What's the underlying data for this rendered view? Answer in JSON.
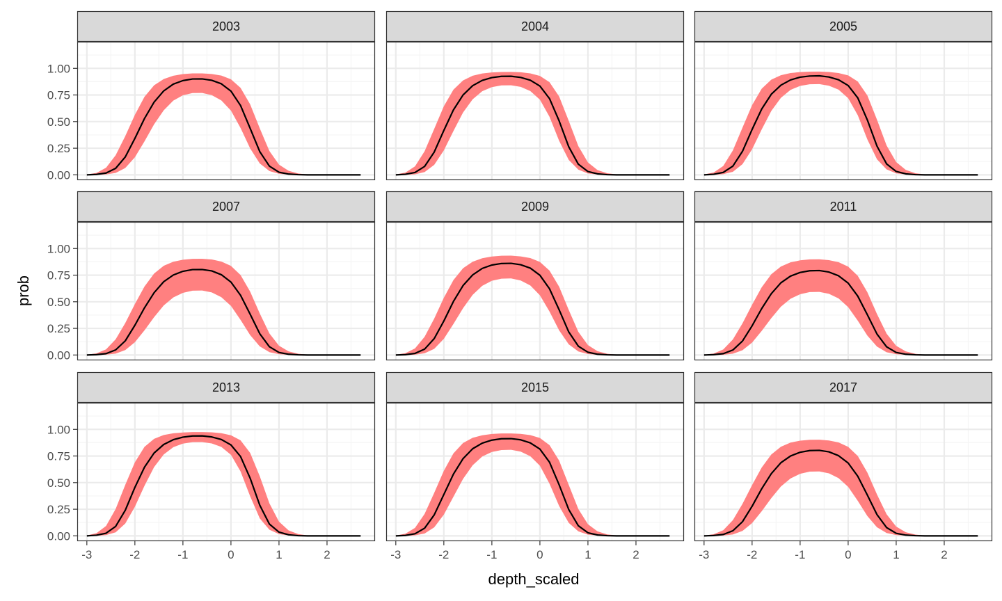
{
  "colors": {
    "ribbon": "#ff8080",
    "line": "#000000",
    "strip_fill": "#d9d9d9",
    "panel_border": "#333333",
    "grid_major": "#ebebeb",
    "grid_minor": "#f5f5f5",
    "tick_text": "#4d4d4d"
  },
  "chart_data": {
    "type": "line",
    "layout": "facet-grid 3x3",
    "xlabel": "depth_scaled",
    "ylabel": "prob",
    "xlim": [
      -3.2,
      3.0
    ],
    "ylim": [
      -0.05,
      1.25
    ],
    "x_ticks": [
      -3,
      -2,
      -1,
      0,
      1,
      2
    ],
    "x_tick_labels": [
      "-3",
      "-2",
      "-1",
      "0",
      "1",
      "2"
    ],
    "y_ticks": [
      0,
      0.25,
      0.5,
      0.75,
      1.0
    ],
    "y_tick_labels": [
      "0.00",
      "0.25",
      "0.50",
      "0.75",
      "1.00"
    ],
    "grid": true,
    "x": [
      -3.0,
      -2.8,
      -2.6,
      -2.4,
      -2.2,
      -2.0,
      -1.8,
      -1.6,
      -1.4,
      -1.2,
      -1.0,
      -0.8,
      -0.6,
      -0.4,
      -0.2,
      0.0,
      0.2,
      0.4,
      0.6,
      0.8,
      1.0,
      1.2,
      1.4,
      1.6,
      1.8,
      2.0,
      2.2,
      2.4,
      2.7
    ],
    "panels": [
      {
        "strip": "2003",
        "y": [
          0.0,
          0.004,
          0.017,
          0.061,
          0.168,
          0.342,
          0.529,
          0.683,
          0.788,
          0.852,
          0.885,
          0.9,
          0.901,
          0.888,
          0.855,
          0.786,
          0.651,
          0.436,
          0.218,
          0.082,
          0.025,
          0.007,
          0.002,
          0.0,
          0.0,
          0.0,
          0.0,
          0.0,
          0.0
        ],
        "lower": [
          0.0,
          0.0,
          0.004,
          0.018,
          0.064,
          0.165,
          0.314,
          0.474,
          0.606,
          0.697,
          0.747,
          0.768,
          0.769,
          0.749,
          0.699,
          0.603,
          0.44,
          0.248,
          0.107,
          0.036,
          0.01,
          0.002,
          0.0,
          0.0,
          0.0,
          0.0,
          0.0,
          0.0,
          0.0
        ],
        "upper": [
          0.003,
          0.018,
          0.067,
          0.184,
          0.364,
          0.563,
          0.733,
          0.841,
          0.9,
          0.931,
          0.946,
          0.953,
          0.953,
          0.947,
          0.932,
          0.897,
          0.817,
          0.662,
          0.437,
          0.224,
          0.096,
          0.038,
          0.013,
          0.003,
          0.0,
          0.0,
          0.0,
          0.0,
          0.0
        ]
      },
      {
        "strip": "2004",
        "y": [
          0.0,
          0.005,
          0.022,
          0.079,
          0.214,
          0.417,
          0.61,
          0.75,
          0.837,
          0.887,
          0.913,
          0.925,
          0.926,
          0.915,
          0.889,
          0.834,
          0.716,
          0.507,
          0.264,
          0.1,
          0.031,
          0.009,
          0.002,
          0.0,
          0.0,
          0.0,
          0.0,
          0.0,
          0.0
        ],
        "lower": [
          0.0,
          0.0,
          0.005,
          0.026,
          0.094,
          0.229,
          0.411,
          0.585,
          0.709,
          0.785,
          0.824,
          0.84,
          0.841,
          0.826,
          0.787,
          0.706,
          0.545,
          0.32,
          0.14,
          0.049,
          0.013,
          0.003,
          0.0,
          0.0,
          0.0,
          0.0,
          0.0,
          0.0,
          0.0
        ],
        "upper": [
          0.004,
          0.021,
          0.08,
          0.222,
          0.432,
          0.644,
          0.8,
          0.887,
          0.931,
          0.952,
          0.962,
          0.966,
          0.967,
          0.963,
          0.953,
          0.929,
          0.87,
          0.736,
          0.508,
          0.27,
          0.117,
          0.045,
          0.015,
          0.004,
          0.0,
          0.0,
          0.0,
          0.0,
          0.0
        ]
      },
      {
        "strip": "2005",
        "y": [
          0.0,
          0.005,
          0.023,
          0.082,
          0.221,
          0.426,
          0.618,
          0.757,
          0.842,
          0.891,
          0.917,
          0.928,
          0.93,
          0.919,
          0.893,
          0.839,
          0.723,
          0.515,
          0.27,
          0.103,
          0.032,
          0.009,
          0.002,
          0.0,
          0.0,
          0.0,
          0.0,
          0.0,
          0.0
        ],
        "lower": [
          0.0,
          0.0,
          0.006,
          0.028,
          0.1,
          0.24,
          0.426,
          0.6,
          0.723,
          0.798,
          0.835,
          0.851,
          0.852,
          0.837,
          0.8,
          0.72,
          0.56,
          0.332,
          0.146,
          0.051,
          0.014,
          0.003,
          0.0,
          0.0,
          0.0,
          0.0,
          0.0,
          0.0,
          0.0
        ],
        "upper": [
          0.004,
          0.022,
          0.083,
          0.229,
          0.443,
          0.655,
          0.809,
          0.894,
          0.936,
          0.956,
          0.965,
          0.969,
          0.97,
          0.966,
          0.956,
          0.934,
          0.877,
          0.745,
          0.518,
          0.276,
          0.12,
          0.046,
          0.015,
          0.004,
          0.0,
          0.0,
          0.0,
          0.0,
          0.0
        ]
      },
      {
        "strip": "2007",
        "y": [
          0.0,
          0.003,
          0.013,
          0.048,
          0.133,
          0.279,
          0.443,
          0.585,
          0.688,
          0.751,
          0.786,
          0.802,
          0.803,
          0.79,
          0.754,
          0.685,
          0.561,
          0.383,
          0.2,
          0.078,
          0.024,
          0.007,
          0.002,
          0.0,
          0.0,
          0.0,
          0.0,
          0.0,
          0.0
        ],
        "lower": [
          0.0,
          0.0,
          0.003,
          0.013,
          0.046,
          0.12,
          0.232,
          0.355,
          0.465,
          0.54,
          0.584,
          0.604,
          0.606,
          0.588,
          0.543,
          0.461,
          0.33,
          0.187,
          0.081,
          0.027,
          0.007,
          0.002,
          0.0,
          0.0,
          0.0,
          0.0,
          0.0,
          0.0,
          0.0
        ],
        "upper": [
          0.003,
          0.015,
          0.053,
          0.148,
          0.3,
          0.478,
          0.643,
          0.765,
          0.838,
          0.876,
          0.895,
          0.903,
          0.904,
          0.897,
          0.878,
          0.837,
          0.751,
          0.595,
          0.39,
          0.203,
          0.087,
          0.034,
          0.012,
          0.003,
          0.0,
          0.0,
          0.0,
          0.0,
          0.0
        ]
      },
      {
        "strip": "2009",
        "y": [
          0.0,
          0.003,
          0.015,
          0.055,
          0.154,
          0.319,
          0.503,
          0.652,
          0.752,
          0.813,
          0.845,
          0.859,
          0.861,
          0.848,
          0.816,
          0.749,
          0.622,
          0.425,
          0.217,
          0.083,
          0.026,
          0.007,
          0.002,
          0.0,
          0.0,
          0.0,
          0.0,
          0.0,
          0.0
        ],
        "lower": [
          0.0,
          0.0,
          0.003,
          0.016,
          0.058,
          0.152,
          0.291,
          0.439,
          0.565,
          0.65,
          0.697,
          0.717,
          0.719,
          0.7,
          0.653,
          0.561,
          0.408,
          0.232,
          0.1,
          0.033,
          0.009,
          0.002,
          0.0,
          0.0,
          0.0,
          0.0,
          0.0,
          0.0,
          0.0
        ],
        "upper": [
          0.003,
          0.017,
          0.062,
          0.171,
          0.342,
          0.537,
          0.704,
          0.815,
          0.876,
          0.909,
          0.925,
          0.932,
          0.933,
          0.926,
          0.91,
          0.874,
          0.793,
          0.642,
          0.424,
          0.218,
          0.093,
          0.036,
          0.012,
          0.003,
          0.0,
          0.0,
          0.0,
          0.0,
          0.0
        ]
      },
      {
        "strip": "2011",
        "y": [
          0.0,
          0.003,
          0.013,
          0.047,
          0.131,
          0.274,
          0.436,
          0.576,
          0.678,
          0.741,
          0.775,
          0.791,
          0.793,
          0.779,
          0.744,
          0.675,
          0.553,
          0.378,
          0.197,
          0.077,
          0.024,
          0.007,
          0.002,
          0.0,
          0.0,
          0.0,
          0.0,
          0.0,
          0.0
        ],
        "lower": [
          0.0,
          0.0,
          0.002,
          0.012,
          0.045,
          0.117,
          0.226,
          0.346,
          0.454,
          0.528,
          0.571,
          0.591,
          0.593,
          0.575,
          0.531,
          0.45,
          0.322,
          0.182,
          0.079,
          0.026,
          0.007,
          0.002,
          0.0,
          0.0,
          0.0,
          0.0,
          0.0,
          0.0,
          0.0
        ],
        "upper": [
          0.003,
          0.014,
          0.052,
          0.146,
          0.297,
          0.472,
          0.636,
          0.758,
          0.831,
          0.87,
          0.889,
          0.898,
          0.899,
          0.891,
          0.872,
          0.83,
          0.744,
          0.589,
          0.385,
          0.201,
          0.086,
          0.034,
          0.011,
          0.003,
          0.0,
          0.0,
          0.0,
          0.0,
          0.0
        ]
      },
      {
        "strip": "2013",
        "y": [
          0.0,
          0.006,
          0.025,
          0.089,
          0.24,
          0.455,
          0.645,
          0.778,
          0.858,
          0.903,
          0.927,
          0.938,
          0.939,
          0.929,
          0.905,
          0.854,
          0.745,
          0.541,
          0.288,
          0.111,
          0.035,
          0.01,
          0.002,
          0.0,
          0.0,
          0.0,
          0.0,
          0.0,
          0.0
        ],
        "lower": [
          0.0,
          0.001,
          0.007,
          0.033,
          0.116,
          0.273,
          0.47,
          0.646,
          0.764,
          0.833,
          0.866,
          0.88,
          0.881,
          0.868,
          0.835,
          0.761,
          0.605,
          0.371,
          0.164,
          0.058,
          0.016,
          0.004,
          0.0,
          0.0,
          0.0,
          0.0,
          0.0,
          0.0,
          0.0
        ],
        "upper": [
          0.004,
          0.025,
          0.093,
          0.253,
          0.479,
          0.691,
          0.836,
          0.911,
          0.947,
          0.963,
          0.971,
          0.975,
          0.975,
          0.972,
          0.964,
          0.945,
          0.897,
          0.779,
          0.56,
          0.306,
          0.134,
          0.051,
          0.017,
          0.004,
          0.0,
          0.0,
          0.0,
          0.0,
          0.0
        ]
      },
      {
        "strip": "2015",
        "y": [
          0.0,
          0.004,
          0.02,
          0.072,
          0.197,
          0.388,
          0.58,
          0.725,
          0.818,
          0.871,
          0.899,
          0.912,
          0.913,
          0.902,
          0.873,
          0.815,
          0.692,
          0.48,
          0.248,
          0.095,
          0.029,
          0.008,
          0.002,
          0.0,
          0.0,
          0.0,
          0.0,
          0.0,
          0.0
        ],
        "lower": [
          0.0,
          0.0,
          0.005,
          0.022,
          0.08,
          0.199,
          0.367,
          0.535,
          0.663,
          0.745,
          0.788,
          0.806,
          0.808,
          0.791,
          0.748,
          0.659,
          0.49,
          0.281,
          0.122,
          0.042,
          0.011,
          0.003,
          0.0,
          0.0,
          0.0,
          0.0,
          0.0,
          0.0,
          0.0
        ],
        "upper": [
          0.003,
          0.02,
          0.075,
          0.206,
          0.404,
          0.611,
          0.775,
          0.872,
          0.921,
          0.945,
          0.957,
          0.962,
          0.962,
          0.958,
          0.946,
          0.919,
          0.852,
          0.707,
          0.479,
          0.252,
          0.109,
          0.042,
          0.014,
          0.004,
          0.0,
          0.0,
          0.0,
          0.0,
          0.0
        ]
      },
      {
        "strip": "2017",
        "y": [
          0.0,
          0.003,
          0.013,
          0.048,
          0.133,
          0.278,
          0.442,
          0.584,
          0.687,
          0.75,
          0.785,
          0.801,
          0.803,
          0.789,
          0.753,
          0.684,
          0.56,
          0.383,
          0.2,
          0.078,
          0.024,
          0.007,
          0.002,
          0.0,
          0.0,
          0.0,
          0.0,
          0.0,
          0.0
        ],
        "lower": [
          0.0,
          0.0,
          0.003,
          0.013,
          0.046,
          0.12,
          0.231,
          0.354,
          0.464,
          0.539,
          0.583,
          0.603,
          0.605,
          0.587,
          0.542,
          0.46,
          0.329,
          0.186,
          0.081,
          0.027,
          0.007,
          0.002,
          0.0,
          0.0,
          0.0,
          0.0,
          0.0,
          0.0,
          0.0
        ],
        "upper": [
          0.003,
          0.015,
          0.053,
          0.148,
          0.3,
          0.477,
          0.642,
          0.764,
          0.837,
          0.876,
          0.894,
          0.902,
          0.903,
          0.896,
          0.878,
          0.836,
          0.75,
          0.594,
          0.389,
          0.203,
          0.087,
          0.034,
          0.012,
          0.003,
          0.0,
          0.0,
          0.0,
          0.0,
          0.0
        ]
      }
    ]
  }
}
